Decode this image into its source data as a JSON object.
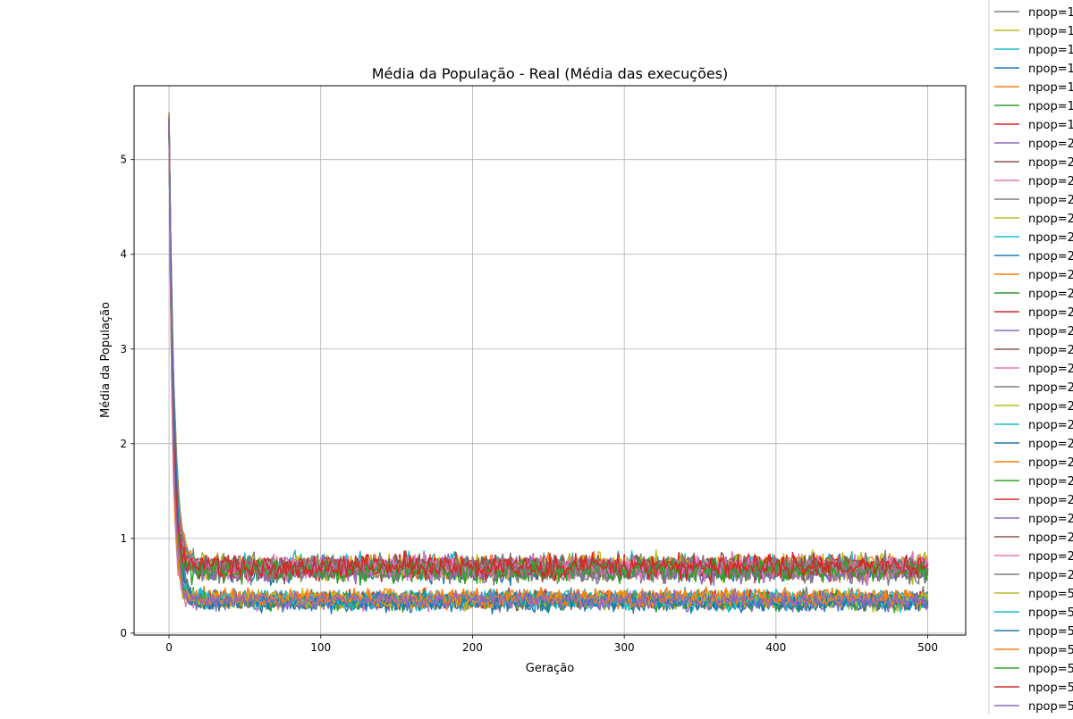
{
  "chart_data": {
    "type": "line",
    "title": "Média da População - Real (Média das execuções)",
    "xlabel": "Geração",
    "ylabel": "Média da População",
    "xlim": [
      -23,
      525
    ],
    "ylim": [
      -0.02,
      5.78
    ],
    "x_ticks": [
      0,
      100,
      200,
      300,
      400,
      500
    ],
    "y_ticks": [
      0,
      1,
      2,
      3,
      4,
      5
    ],
    "grid": true,
    "legend_position": "right, outside plot (clipped)",
    "series_x": {
      "start": 0,
      "end": 500,
      "step": 1
    },
    "series_shape": "each series starts near 5.3-5.5 at generation 0, drops sharply within ~10 generations, then fluctuates around a plateau (two clusters: ~0.33-0.37 and ~0.65-0.72)",
    "series": [
      {
        "name": "npop=1",
        "color": "#7f7f7f",
        "start": 5.41,
        "plateau": 0.7
      },
      {
        "name": "npop=1",
        "color": "#bcbd22",
        "start": 5.38,
        "plateau": 0.68
      },
      {
        "name": "npop=1",
        "color": "#17becf",
        "start": 5.45,
        "plateau": 0.72
      },
      {
        "name": "npop=1",
        "color": "#1f77b4",
        "start": 5.4,
        "plateau": 0.66
      },
      {
        "name": "npop=1",
        "color": "#ff7f0e",
        "start": 5.36,
        "plateau": 0.7
      },
      {
        "name": "npop=1",
        "color": "#2ca02c",
        "start": 5.42,
        "plateau": 0.67
      },
      {
        "name": "npop=1",
        "color": "#d62728",
        "start": 5.39,
        "plateau": 0.71
      },
      {
        "name": "npop=2",
        "color": "#9467bd",
        "start": 5.5,
        "plateau": 0.69
      },
      {
        "name": "npop=2",
        "color": "#8c564b",
        "start": 5.33,
        "plateau": 0.68
      },
      {
        "name": "npop=2",
        "color": "#e377c2",
        "start": 5.47,
        "plateau": 0.7
      },
      {
        "name": "npop=2",
        "color": "#7f7f7f",
        "start": 5.3,
        "plateau": 0.65
      },
      {
        "name": "npop=2",
        "color": "#bcbd22",
        "start": 5.44,
        "plateau": 0.72
      },
      {
        "name": "npop=2",
        "color": "#17becf",
        "start": 5.37,
        "plateau": 0.36
      },
      {
        "name": "npop=2",
        "color": "#1f77b4",
        "start": 5.43,
        "plateau": 0.33
      },
      {
        "name": "npop=2",
        "color": "#ff7f0e",
        "start": 5.35,
        "plateau": 0.37
      },
      {
        "name": "npop=2",
        "color": "#2ca02c",
        "start": 5.48,
        "plateau": 0.34
      },
      {
        "name": "npop=2",
        "color": "#d62728",
        "start": 5.32,
        "plateau": 0.36
      },
      {
        "name": "npop=2",
        "color": "#9467bd",
        "start": 5.46,
        "plateau": 0.33
      },
      {
        "name": "npop=2",
        "color": "#8c564b",
        "start": 5.38,
        "plateau": 0.35
      },
      {
        "name": "npop=2",
        "color": "#e377c2",
        "start": 5.41,
        "plateau": 0.34
      },
      {
        "name": "npop=2",
        "color": "#7f7f7f",
        "start": 5.34,
        "plateau": 0.37
      },
      {
        "name": "npop=2",
        "color": "#bcbd22",
        "start": 5.49,
        "plateau": 0.35
      },
      {
        "name": "npop=2",
        "color": "#17becf",
        "start": 5.36,
        "plateau": 0.36
      },
      {
        "name": "npop=2",
        "color": "#1f77b4",
        "start": 5.44,
        "plateau": 0.32
      },
      {
        "name": "npop=2",
        "color": "#ff7f0e",
        "start": 5.4,
        "plateau": 0.37
      },
      {
        "name": "npop=2",
        "color": "#2ca02c",
        "start": 5.31,
        "plateau": 0.34
      },
      {
        "name": "npop=2",
        "color": "#d62728",
        "start": 5.45,
        "plateau": 0.69
      },
      {
        "name": "npop=2",
        "color": "#9467bd",
        "start": 5.37,
        "plateau": 0.67
      },
      {
        "name": "npop=2",
        "color": "#8c564b",
        "start": 5.42,
        "plateau": 0.71
      },
      {
        "name": "npop=2",
        "color": "#e377c2",
        "start": 5.39,
        "plateau": 0.68
      },
      {
        "name": "npop=2",
        "color": "#7f7f7f",
        "start": 5.47,
        "plateau": 0.7
      },
      {
        "name": "npop=5",
        "color": "#bcbd22",
        "start": 5.35,
        "plateau": 0.35
      },
      {
        "name": "npop=5",
        "color": "#17becf",
        "start": 5.43,
        "plateau": 0.34
      },
      {
        "name": "npop=5",
        "color": "#1f77b4",
        "start": 5.38,
        "plateau": 0.33
      },
      {
        "name": "npop=5",
        "color": "#ff7f0e",
        "start": 5.46,
        "plateau": 0.36
      },
      {
        "name": "npop=5",
        "color": "#2ca02c",
        "start": 5.33,
        "plateau": 0.66
      },
      {
        "name": "npop=5",
        "color": "#d62728",
        "start": 5.41,
        "plateau": 0.7
      },
      {
        "name": "npop=5",
        "color": "#9467bd",
        "start": 5.44,
        "plateau": 0.35
      }
    ]
  }
}
